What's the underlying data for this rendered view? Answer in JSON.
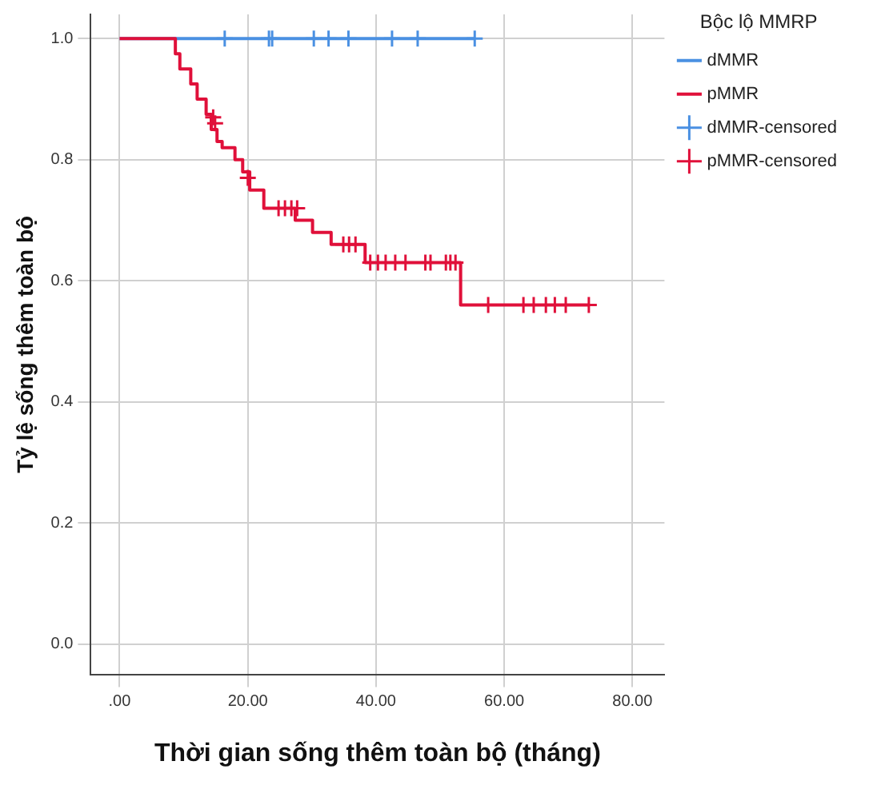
{
  "chart_data": {
    "type": "step",
    "xlabel": "Thời gian sống thêm toàn bộ (tháng)",
    "ylabel": "Tỷ lệ sống thêm toàn bộ",
    "legend_title": "Bộc lộ MMRP",
    "legend": "top right",
    "grid": true,
    "xlim": [
      -4.5,
      85
    ],
    "ylim": [
      -0.05,
      1.04
    ],
    "xticks": [
      {
        "value": 0,
        "label": ".00"
      },
      {
        "value": 20,
        "label": "20.00"
      },
      {
        "value": 40,
        "label": "40.00"
      },
      {
        "value": 60,
        "label": "60.00"
      },
      {
        "value": 80,
        "label": "80.00"
      }
    ],
    "yticks": [
      {
        "value": 0,
        "label": "0.0"
      },
      {
        "value": 0.2,
        "label": "0.2"
      },
      {
        "value": 0.4,
        "label": "0.4"
      },
      {
        "value": 0.6,
        "label": "0.6"
      },
      {
        "value": 0.8,
        "label": "0.8"
      },
      {
        "value": 1,
        "label": "1.0"
      }
    ],
    "series": [
      {
        "name": "dMMR",
        "color": "#4a90e2",
        "x": [
          0,
          55.4
        ],
        "values": [
          1,
          1
        ]
      },
      {
        "name": "pMMR",
        "color": "#e0103a",
        "x": [
          0,
          8.7,
          9.4,
          11.1,
          12.1,
          13.5,
          14.3,
          15.2,
          16.0,
          18.0,
          19.2,
          20.3,
          22.5,
          27.4,
          30.1,
          33.0,
          38.3,
          53.2,
          73.2
        ],
        "values": [
          1,
          0.975,
          0.95,
          0.925,
          0.9,
          0.875,
          0.85,
          0.83,
          0.82,
          0.8,
          0.78,
          0.75,
          0.72,
          0.7,
          0.68,
          0.66,
          0.63,
          0.56,
          0.56
        ]
      },
      {
        "name": "dMMR-censored",
        "type": "scatter",
        "marker": "cross",
        "color": "#4a90e2",
        "x": [
          16.4,
          23.3,
          23.8,
          30.3,
          32.6,
          35.7,
          42.5,
          46.5,
          55.4
        ],
        "values": [
          1,
          1,
          1,
          1,
          1,
          1,
          1,
          1,
          1
        ]
      },
      {
        "name": "pMMR-censored",
        "type": "scatter",
        "marker": "cross",
        "color": "#e0103a",
        "x": [
          14.6,
          14.9,
          20.0,
          24.8,
          25.8,
          26.8,
          27.7,
          34.9,
          35.8,
          36.8,
          39.1,
          40.3,
          41.5,
          43.0,
          44.6,
          47.7,
          48.5,
          50.9,
          51.6,
          52.4,
          57.5,
          63.0,
          64.6,
          66.5,
          67.9,
          69.6,
          73.2
        ],
        "values": [
          0.87,
          0.86,
          0.77,
          0.72,
          0.72,
          0.72,
          0.72,
          0.66,
          0.66,
          0.66,
          0.63,
          0.63,
          0.63,
          0.63,
          0.63,
          0.63,
          0.63,
          0.63,
          0.63,
          0.63,
          0.56,
          0.56,
          0.56,
          0.56,
          0.56,
          0.56,
          0.56
        ]
      }
    ]
  }
}
